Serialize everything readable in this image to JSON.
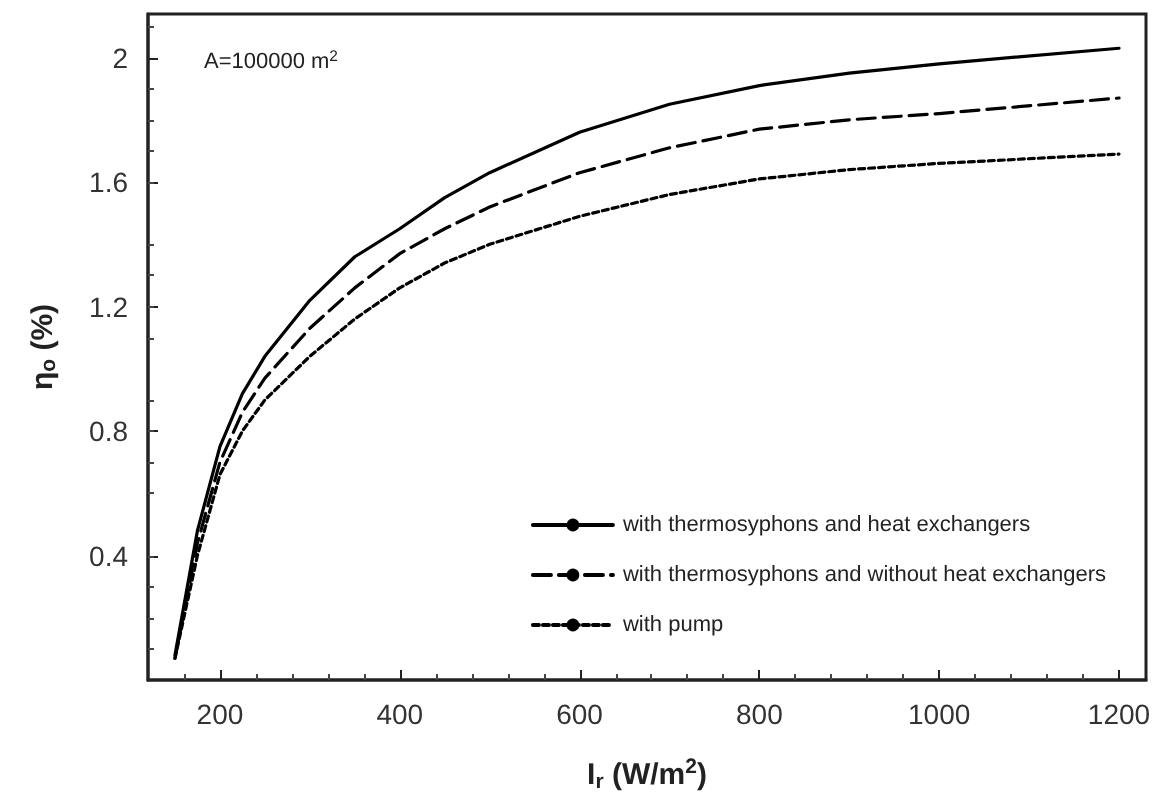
{
  "chart_data": {
    "type": "line",
    "xlabel": "I$_{r}$ (W/m$^{2}$)",
    "ylabel": "η$_{o}$ (%)",
    "annotations": [
      "A=100000 m$^{2}$"
    ],
    "xlim": [
      120,
      1230
    ],
    "xticks": [
      200,
      400,
      600,
      800,
      1000,
      1200
    ],
    "ylim": [
      0,
      2.14
    ],
    "yticks": [
      0.4,
      0.8,
      1.2,
      1.6,
      2
    ],
    "grid": false,
    "legend": "bottom right",
    "marker": "none",
    "x": [
      150,
      175,
      200,
      225,
      250,
      300,
      350,
      400,
      450,
      500,
      600,
      700,
      800,
      900,
      1000,
      1200
    ],
    "series": [
      {
        "name": "with thermosyphons and heat exchangers",
        "color": "#000000",
        "line_style": "solid",
        "values": [
          0.08,
          0.48,
          0.75,
          0.92,
          1.04,
          1.22,
          1.36,
          1.45,
          1.55,
          1.63,
          1.76,
          1.85,
          1.91,
          1.95,
          1.98,
          2.03
        ]
      },
      {
        "name": "with thermosyphons and without heat exchangers",
        "color": "#000000",
        "line_style": "dashed",
        "values": [
          0.07,
          0.44,
          0.7,
          0.86,
          0.97,
          1.13,
          1.26,
          1.37,
          1.45,
          1.52,
          1.63,
          1.71,
          1.77,
          1.8,
          1.82,
          1.87
        ]
      },
      {
        "name": "with pump",
        "color": "#000000",
        "line_style": "dotted",
        "values": [
          0.07,
          0.4,
          0.66,
          0.8,
          0.9,
          1.04,
          1.16,
          1.26,
          1.34,
          1.4,
          1.49,
          1.56,
          1.61,
          1.64,
          1.66,
          1.69
        ]
      }
    ]
  }
}
